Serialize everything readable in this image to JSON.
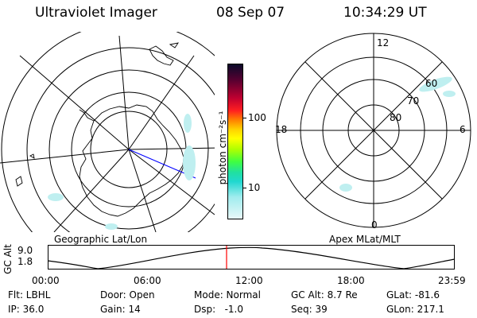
{
  "header": {
    "title": "Ultraviolet Imager",
    "date": "08 Sep 07",
    "time": "10:34:29 UT"
  },
  "colorbar": {
    "unit_label": "photon cm⁻²s⁻¹",
    "ticks": [
      "100",
      "10"
    ]
  },
  "polar_plot": {
    "mlt_labels": [
      "12",
      "18",
      "6",
      "0"
    ],
    "lat_labels": [
      "60",
      "70",
      "80"
    ]
  },
  "panel_labels": {
    "left": "Geographic Lat/Lon",
    "right": "Apex MLat/MLT"
  },
  "timeline": {
    "ylabel": "GC Alt",
    "yticks": [
      "9.0",
      "1.8"
    ],
    "xticks": [
      "00:00",
      "06:00",
      "12:00",
      "18:00",
      "23:59"
    ],
    "current_time_marker": "10:34"
  },
  "status": {
    "row1": [
      "Flt: LBHL",
      "Door: Open",
      "Mode: Normal",
      "GC Alt: 8.7 Re",
      "GLat: -81.6"
    ],
    "row2": [
      "IP: 36.0",
      "Gain: 14",
      "Dsp:   -1.0",
      "Seq: 39",
      "GLon: 217.1"
    ]
  },
  "colors": {
    "marker": "#ff0000",
    "aurora": "#bfeff0",
    "projection_line": "#0000ff"
  }
}
